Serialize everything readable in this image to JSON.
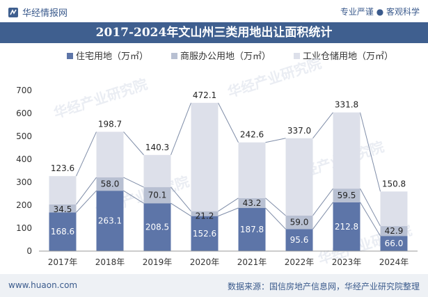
{
  "header": {
    "brand": "华经情报网",
    "tagline": "专业严谨 ● 客观科学"
  },
  "footer": {
    "site": "www.huaon.com",
    "source": "数据来源：国信房地产信息网，华经产业研究院整理"
  },
  "watermark": "华经产业研究院",
  "colors": {
    "title_bg": "#3f5f8f",
    "residential": "#5d75a8",
    "commercial": "#b8c0d2",
    "industrial": "#dde0ea"
  },
  "chart_data": {
    "type": "bar",
    "stacked": true,
    "title": "2017-2024年文山州三类用地出让面积统计",
    "categories": [
      "2017年",
      "2018年",
      "2019年",
      "2020年",
      "2021年",
      "2022年",
      "2023年",
      "2024年"
    ],
    "series": [
      {
        "name": "住宅用地（万㎡）",
        "values": [
          168.6,
          263.1,
          208.5,
          152.6,
          187.8,
          95.6,
          212.8,
          66.0
        ],
        "labels": [
          "168.6",
          "263.1",
          "208.5",
          "152.6",
          "187.8",
          "95.6",
          "212.8",
          "66.0"
        ]
      },
      {
        "name": "商服办公用地（万㎡）",
        "values": [
          34.5,
          58.0,
          70.1,
          21.2,
          43.2,
          59.0,
          59.5,
          42.9
        ],
        "labels": [
          "34.5",
          "58.0",
          "70.1",
          "21.2",
          "43.2",
          "59.0",
          "59.5",
          "42.9"
        ]
      },
      {
        "name": "工业仓储用地（万㎡）",
        "values": [
          123.6,
          198.7,
          140.3,
          472.1,
          242.6,
          337.0,
          331.8,
          150.8
        ],
        "labels": [
          "123.6",
          "198.7",
          "140.3",
          "472.1",
          "242.6",
          "337.0",
          "331.8",
          "150.8"
        ]
      }
    ],
    "ylim": [
      0,
      700
    ],
    "yticks": [
      "0",
      "100",
      "200",
      "300",
      "400",
      "500",
      "600",
      "700"
    ],
    "grid": false,
    "legend": "top"
  }
}
